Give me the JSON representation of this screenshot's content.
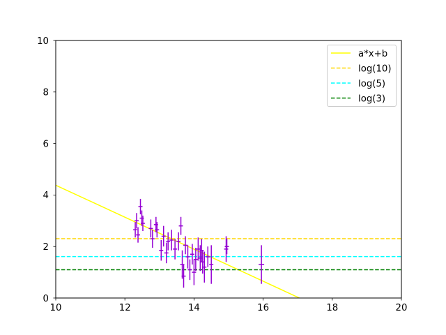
{
  "chart_data": {
    "type": "scatter",
    "title": "",
    "xlabel": "",
    "ylabel": "",
    "xlim": [
      10,
      20
    ],
    "ylim": [
      0,
      10
    ],
    "x_ticks": [
      "10",
      "12",
      "14",
      "16",
      "18",
      "20"
    ],
    "y_ticks": [
      "0",
      "2",
      "4",
      "6",
      "8",
      "10"
    ],
    "x_tick_values": [
      10,
      12,
      14,
      16,
      18,
      20
    ],
    "y_tick_values": [
      0,
      2,
      4,
      6,
      8,
      10
    ],
    "grid": false,
    "legend_position": "top-right",
    "colors": {
      "points": "#9400d3",
      "fit": "#ffff00",
      "log10": "#ffd700",
      "log5": "#00ffff",
      "log3": "#008000"
    },
    "points": [
      {
        "x": 12.3,
        "y": 2.65,
        "xerr": 0.06,
        "yerr": 0.3
      },
      {
        "x": 12.34,
        "y": 3.0,
        "xerr": 0.06,
        "yerr": 0.3
      },
      {
        "x": 12.38,
        "y": 2.45,
        "xerr": 0.06,
        "yerr": 0.3
      },
      {
        "x": 12.45,
        "y": 3.55,
        "xerr": 0.06,
        "yerr": 0.3
      },
      {
        "x": 12.49,
        "y": 3.1,
        "xerr": 0.06,
        "yerr": 0.3
      },
      {
        "x": 12.52,
        "y": 2.9,
        "xerr": 0.06,
        "yerr": 0.3
      },
      {
        "x": 12.75,
        "y": 2.7,
        "xerr": 0.06,
        "yerr": 0.35
      },
      {
        "x": 12.8,
        "y": 2.3,
        "xerr": 0.06,
        "yerr": 0.35
      },
      {
        "x": 12.9,
        "y": 2.85,
        "xerr": 0.06,
        "yerr": 0.3
      },
      {
        "x": 12.93,
        "y": 2.65,
        "xerr": 0.06,
        "yerr": 0.3
      },
      {
        "x": 13.05,
        "y": 1.85,
        "xerr": 0.06,
        "yerr": 0.4
      },
      {
        "x": 13.12,
        "y": 2.4,
        "xerr": 0.06,
        "yerr": 0.4
      },
      {
        "x": 13.2,
        "y": 1.75,
        "xerr": 0.06,
        "yerr": 0.4
      },
      {
        "x": 13.25,
        "y": 2.2,
        "xerr": 0.06,
        "yerr": 0.35
      },
      {
        "x": 13.35,
        "y": 2.25,
        "xerr": 0.06,
        "yerr": 0.4
      },
      {
        "x": 13.45,
        "y": 1.9,
        "xerr": 0.06,
        "yerr": 0.4
      },
      {
        "x": 13.55,
        "y": 2.2,
        "xerr": 0.06,
        "yerr": 0.35
      },
      {
        "x": 13.62,
        "y": 2.8,
        "xerr": 0.06,
        "yerr": 0.35
      },
      {
        "x": 13.66,
        "y": 1.3,
        "xerr": 0.06,
        "yerr": 0.55
      },
      {
        "x": 13.7,
        "y": 0.85,
        "xerr": 0.06,
        "yerr": 0.45
      },
      {
        "x": 13.75,
        "y": 2.05,
        "xerr": 0.06,
        "yerr": 0.35
      },
      {
        "x": 13.82,
        "y": 1.6,
        "xerr": 0.06,
        "yerr": 0.45
      },
      {
        "x": 13.88,
        "y": 1.1,
        "xerr": 0.06,
        "yerr": 0.4
      },
      {
        "x": 13.95,
        "y": 1.7,
        "xerr": 0.06,
        "yerr": 0.4
      },
      {
        "x": 14.0,
        "y": 1.0,
        "xerr": 0.06,
        "yerr": 0.5
      },
      {
        "x": 14.05,
        "y": 1.5,
        "xerr": 0.06,
        "yerr": 0.45
      },
      {
        "x": 14.12,
        "y": 1.9,
        "xerr": 0.06,
        "yerr": 0.45
      },
      {
        "x": 14.18,
        "y": 1.55,
        "xerr": 0.06,
        "yerr": 0.5
      },
      {
        "x": 14.22,
        "y": 1.85,
        "xerr": 0.06,
        "yerr": 0.45
      },
      {
        "x": 14.25,
        "y": 1.4,
        "xerr": 0.06,
        "yerr": 0.45
      },
      {
        "x": 14.3,
        "y": 1.2,
        "xerr": 0.06,
        "yerr": 0.6
      },
      {
        "x": 14.4,
        "y": 1.6,
        "xerr": 0.06,
        "yerr": 0.4
      },
      {
        "x": 14.5,
        "y": 1.3,
        "xerr": 0.06,
        "yerr": 0.75
      },
      {
        "x": 14.93,
        "y": 1.9,
        "xerr": 0.06,
        "yerr": 0.5
      },
      {
        "x": 14.95,
        "y": 2.0,
        "xerr": 0.06,
        "yerr": 0.3
      },
      {
        "x": 15.95,
        "y": 1.3,
        "xerr": 0.08,
        "yerr": 0.75
      }
    ],
    "series": [
      {
        "name": "a*x+b",
        "kind": "line",
        "style": "solid",
        "x": [
          10,
          17.05
        ],
        "y": [
          4.38,
          0
        ]
      },
      {
        "name": "log(10)",
        "kind": "hline",
        "style": "dashed",
        "y": 2.302585
      },
      {
        "name": "log(5)",
        "kind": "hline",
        "style": "dashed",
        "y": 1.609438
      },
      {
        "name": "log(3)",
        "kind": "hline",
        "style": "dashed",
        "y": 1.098612
      }
    ]
  }
}
